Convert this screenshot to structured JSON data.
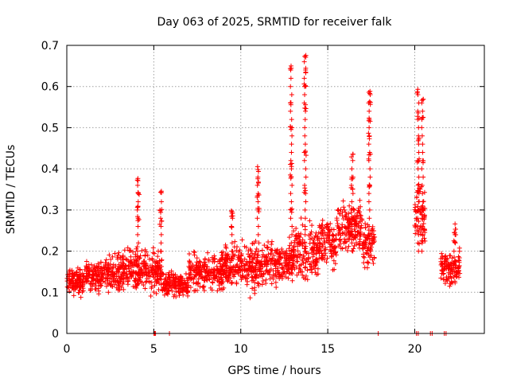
{
  "chart_data": {
    "type": "scatter",
    "title": "Day 063 of 2025, SRMTID for receiver falk",
    "xlabel": "GPS time / hours",
    "ylabel": "SRMTID / TECUs",
    "xlim": [
      0,
      24
    ],
    "ylim": [
      0,
      0.7
    ],
    "xticks": [
      0,
      5,
      10,
      15,
      20
    ],
    "xtick_labels": [
      "0",
      "5",
      "10",
      "15",
      "20"
    ],
    "yticks": [
      0,
      0.1,
      0.2,
      0.3,
      0.4,
      0.5,
      0.6,
      0.7
    ],
    "ytick_labels": [
      "0",
      "0.1",
      "0.2",
      "0.3",
      "0.4",
      "0.5",
      "0.6",
      "0.7"
    ],
    "grid": true,
    "marker": "plus",
    "series": [
      {
        "name": "SRMTID",
        "color": "#ff0000",
        "segments": [
          {
            "x0": 0.0,
            "x1": 1.0,
            "base": 0.13,
            "spread": 0.05
          },
          {
            "x0": 1.0,
            "x1": 2.0,
            "base": 0.14,
            "spread": 0.05
          },
          {
            "x0": 2.0,
            "x1": 3.5,
            "base": 0.15,
            "spread": 0.06
          },
          {
            "x0": 3.5,
            "x1": 4.5,
            "base": 0.16,
            "spread": 0.07
          },
          {
            "x0": 4.5,
            "x1": 5.5,
            "base": 0.15,
            "spread": 0.07
          },
          {
            "x0": 5.5,
            "x1": 7.0,
            "base": 0.12,
            "spread": 0.04
          },
          {
            "x0": 7.0,
            "x1": 9.0,
            "base": 0.15,
            "spread": 0.06
          },
          {
            "x0": 9.0,
            "x1": 10.0,
            "base": 0.17,
            "spread": 0.07
          },
          {
            "x0": 10.0,
            "x1": 11.5,
            "base": 0.16,
            "spread": 0.08
          },
          {
            "x0": 11.5,
            "x1": 13.0,
            "base": 0.17,
            "spread": 0.07
          },
          {
            "x0": 13.0,
            "x1": 14.5,
            "base": 0.2,
            "spread": 0.09
          },
          {
            "x0": 14.5,
            "x1": 15.5,
            "base": 0.22,
            "spread": 0.08
          },
          {
            "x0": 15.5,
            "x1": 17.0,
            "base": 0.26,
            "spread": 0.08
          },
          {
            "x0": 17.0,
            "x1": 17.7,
            "base": 0.22,
            "spread": 0.08
          },
          {
            "x0": 20.0,
            "x1": 20.6,
            "base": 0.28,
            "spread": 0.1
          },
          {
            "x0": 21.5,
            "x1": 22.6,
            "base": 0.16,
            "spread": 0.06
          }
        ],
        "spikes": [
          {
            "x": 4.1,
            "values": [
              0.28,
              0.31,
              0.34,
              0.37
            ]
          },
          {
            "x": 5.4,
            "values": [
              0.27,
              0.3,
              0.34
            ]
          },
          {
            "x": 9.5,
            "values": [
              0.26,
              0.29,
              0.3
            ]
          },
          {
            "x": 11.0,
            "values": [
              0.3,
              0.33,
              0.37,
              0.4
            ]
          },
          {
            "x": 12.9,
            "values": [
              0.3,
              0.38,
              0.41,
              0.5,
              0.56,
              0.65
            ]
          },
          {
            "x": 13.7,
            "values": [
              0.35,
              0.44,
              0.55,
              0.6,
              0.64,
              0.67
            ]
          },
          {
            "x": 16.4,
            "values": [
              0.35,
              0.38,
              0.43
            ]
          },
          {
            "x": 17.4,
            "values": [
              0.36,
              0.43,
              0.48,
              0.52,
              0.56,
              0.59
            ]
          },
          {
            "x": 20.2,
            "values": [
              0.35,
              0.42,
              0.47,
              0.53,
              0.59
            ]
          },
          {
            "x": 20.45,
            "values": [
              0.3,
              0.42,
              0.52,
              0.57
            ]
          },
          {
            "x": 22.3,
            "values": [
              0.22,
              0.24,
              0.26
            ]
          }
        ],
        "dropouts": [
          5.0,
          5.05,
          5.1,
          5.9,
          17.9,
          20.1,
          20.2,
          20.9,
          21.0,
          21.7,
          21.8
        ]
      }
    ]
  }
}
